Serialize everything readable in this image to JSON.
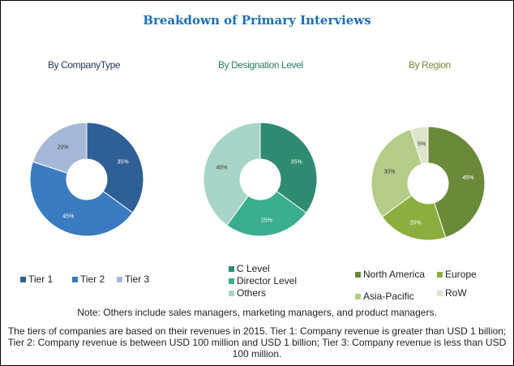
{
  "title": "Breakdown of Primary Interviews",
  "chart_data": [
    {
      "type": "pie",
      "title": "By CompanyType",
      "title_color": "#2a3a5a",
      "labels": [
        "Tier 1",
        "Tier 2",
        "Tier 3"
      ],
      "values": [
        35,
        45,
        20
      ],
      "colors": [
        "#2e5f95",
        "#3a7bbf",
        "#a6b8d8"
      ],
      "value_labels": [
        "35%",
        "45%",
        "20%"
      ]
    },
    {
      "type": "pie",
      "title": "By Designation Level",
      "title_color": "#2e7a6a",
      "labels": [
        "C Level",
        "Director Level",
        "Others"
      ],
      "values": [
        35,
        25,
        40
      ],
      "colors": [
        "#2e8b72",
        "#3aae8e",
        "#a8d5c8"
      ],
      "value_labels": [
        "35%",
        "25%",
        "40%"
      ]
    },
    {
      "type": "pie",
      "title": "By Region",
      "title_color": "#7a8a3a",
      "labels": [
        "North America",
        "Europe",
        "Asia-Pacific",
        "RoW"
      ],
      "values": [
        45,
        20,
        30,
        5
      ],
      "colors": [
        "#6a8a3a",
        "#8cae3e",
        "#b4cc88",
        "#dde6cc"
      ],
      "value_labels": [
        "45%",
        "20%",
        "30%",
        "5%"
      ]
    }
  ],
  "note": "Note: Others include sales managers, marketing managers, and product managers.",
  "tiers_note": "The tiers of companies are based on their revenues in 2015. Tier 1: Company revenue is greater than USD 1 billion; Tier 2: Company revenue is between USD 100 million and USD 1 billion; Tier 3: Company revenue is less than USD 100 million."
}
